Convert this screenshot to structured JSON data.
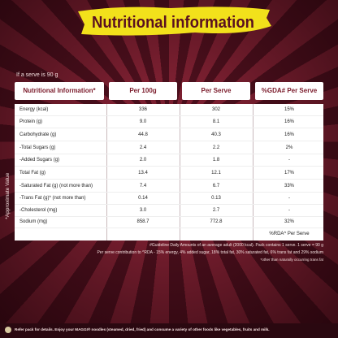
{
  "header": {
    "title": "Nutritional information",
    "serve_note": "If a serve is 90 g"
  },
  "table": {
    "columns": [
      "Nutritional Information*",
      "Per 100g",
      "Per Serve",
      "%GDA# Per Serve"
    ],
    "rows": [
      [
        "Energy (kcal)",
        "336",
        "302",
        "15%"
      ],
      [
        "Protein (g)",
        "9.0",
        "8.1",
        "16%"
      ],
      [
        "Carbohydrate (g)",
        "44.8",
        "40.3",
        "16%"
      ],
      [
        "-Total Sugars (g)",
        "2.4",
        "2.2",
        "2%"
      ],
      [
        "-Added Sugars (g)",
        "2.0",
        "1.8",
        "-"
      ],
      [
        "Total Fat (g)",
        "13.4",
        "12.1",
        "17%"
      ],
      [
        "-Saturated Fat (g) (not more than)",
        "7.4",
        "6.7",
        "33%"
      ],
      [
        "-Trans Fat (g)* (not more than)",
        "0.14",
        "0.13",
        "-"
      ],
      [
        "-Cholesterol (mg)",
        "3.0",
        "2.7",
        "-"
      ],
      [
        "Sodium (mg)",
        "858.7",
        "772.8",
        "32%"
      ]
    ],
    "footer_note": "%RDA^ Per Serve",
    "side_note": "*Approximate Value"
  },
  "footnotes": [
    "#Guideline Daily Amounts of an average adult (2000 kcal). Pack contains 1 serve. 1 serve = 90 g",
    "Per serve contribution to ^RDA - 15% energy, 4% added sugar, 18% total fat, 30% saturated fat, 6% trans fat and 29% sodium",
    "*other than naturally occurring trans fat"
  ],
  "bottom_bar": "Refer pack for details. Enjoy your MAGGI® noodles (steamed, dried, fried) and consume a variety of other foods like vegetables, fruits and milk."
}
